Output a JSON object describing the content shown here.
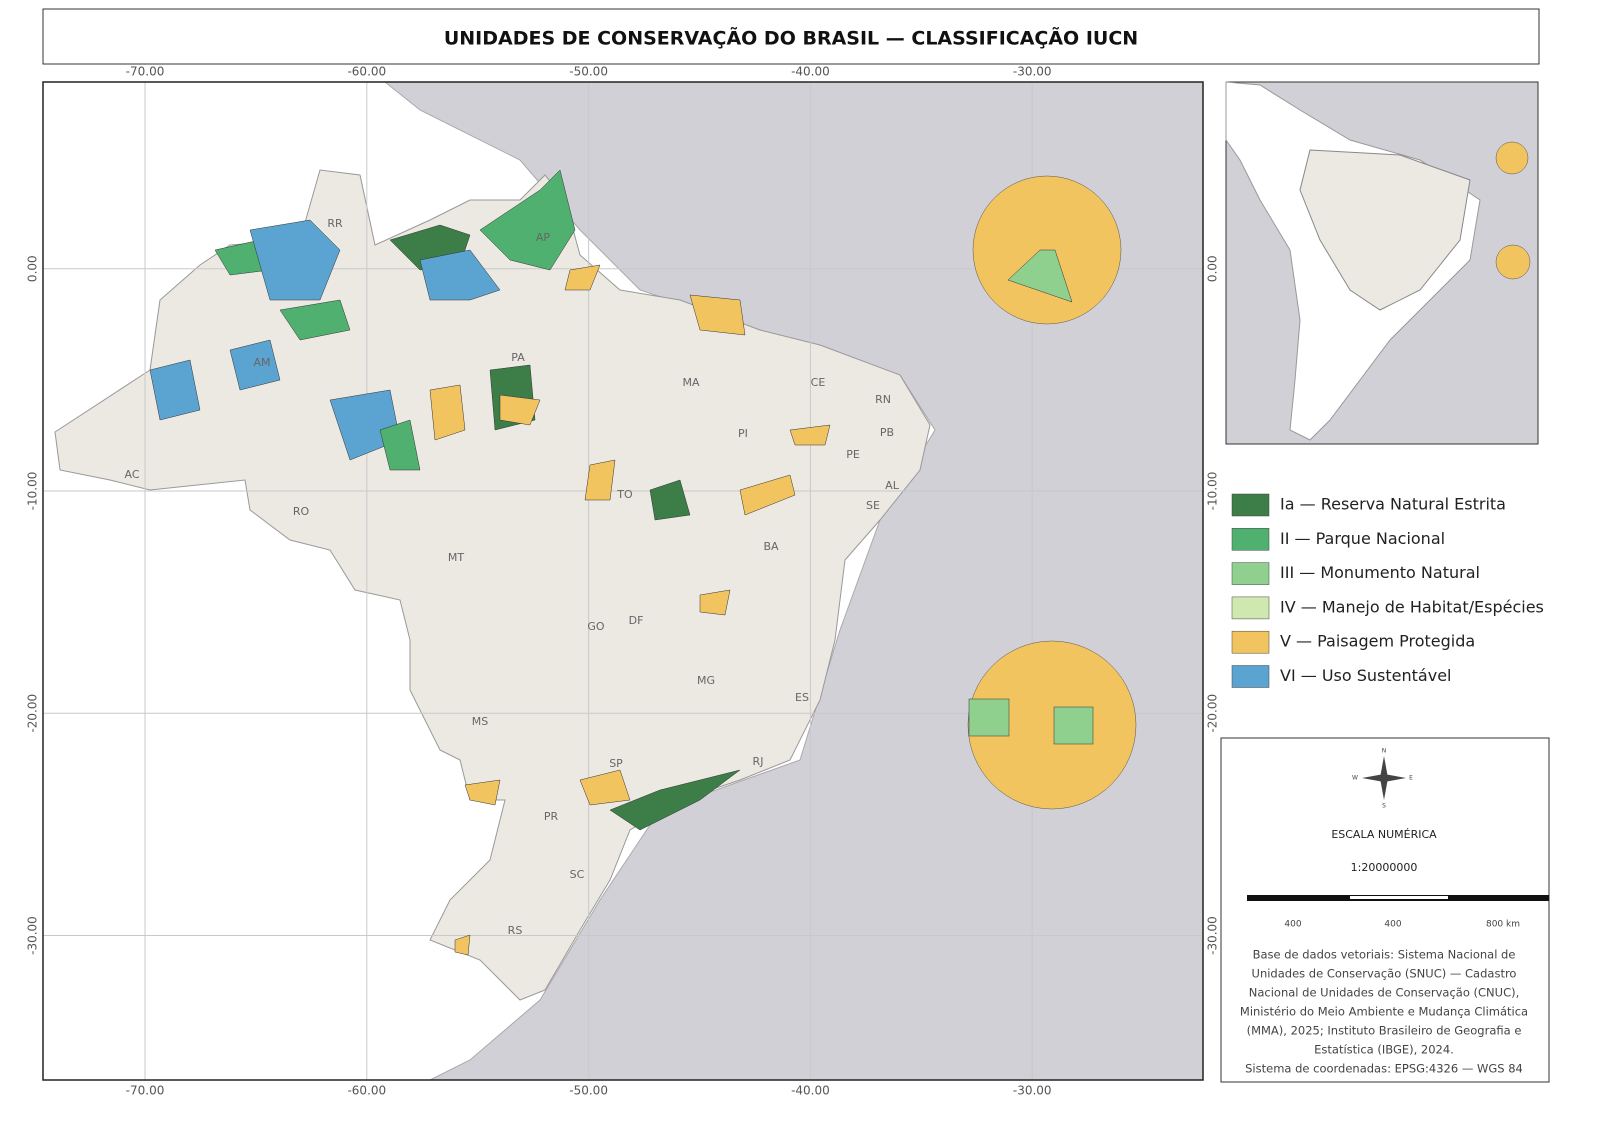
{
  "title": "UNIDADES DE CONSERVAÇÃO DO BRASIL — CLASSIFICAÇÃO IUCN",
  "map": {
    "extent": {
      "lon": [
        -74.6,
        -22.3
      ],
      "lat": [
        -36.5,
        8.4
      ]
    },
    "lon_ticks": [
      {
        "value": -70,
        "label": "-70.00"
      },
      {
        "value": -60,
        "label": "-60.00"
      },
      {
        "value": -50,
        "label": "-50.00"
      },
      {
        "value": -40,
        "label": "-40.00"
      },
      {
        "value": -30,
        "label": "-30.00"
      }
    ],
    "lat_ticks": [
      {
        "value": 0,
        "label": "0.00"
      },
      {
        "value": -10,
        "label": "-10.00"
      },
      {
        "value": -20,
        "label": "-20.00"
      },
      {
        "value": -30,
        "label": "-30.00"
      }
    ]
  },
  "states": [
    "RR",
    "AP",
    "AM",
    "PA",
    "MA",
    "CE",
    "RN",
    "PB",
    "PI",
    "PE",
    "AC",
    "AL",
    "SE",
    "TO",
    "RO",
    "BA",
    "MT",
    "GO",
    "DF",
    "MG",
    "ES",
    "MS",
    "SP",
    "RJ",
    "PR",
    "SC",
    "RS"
  ],
  "legend": [
    {
      "label": "Ia — Reserva Natural Estrita",
      "color": "#3d7d47"
    },
    {
      "label": "II — Parque Nacional",
      "color": "#4fb070"
    },
    {
      "label": "III — Monumento Natural",
      "color": "#8fd08f"
    },
    {
      "label": "IV — Manejo de Habitat/Espécies",
      "color": "#cfe8b0"
    },
    {
      "label": "V — Paisagem Protegida",
      "color": "#f2c45f"
    },
    {
      "label": "VI — Uso Sustentável",
      "color": "#5ba3d0"
    }
  ],
  "compass": [
    "N",
    "S",
    "W",
    "E"
  ],
  "scale": {
    "title": "ESCALA NUMÉRICA",
    "ratio": "1:20000000",
    "labels": [
      "400",
      "400",
      "800 km"
    ]
  },
  "credits": [
    "Base de dados vetoriais: Sistema Nacional de",
    "Unidades de Conservação (SNUC) — Cadastro",
    "Nacional de Unidades de Conservação (CNUC),",
    "Ministério do Meio Ambiente e Mudança Climática",
    "(MMA), 2025; Instituto Brasileiro de Geografia e",
    "Estatística (IBGE), 2024.",
    "Sistema de coordenadas: EPSG:4326 — WGS 84"
  ]
}
